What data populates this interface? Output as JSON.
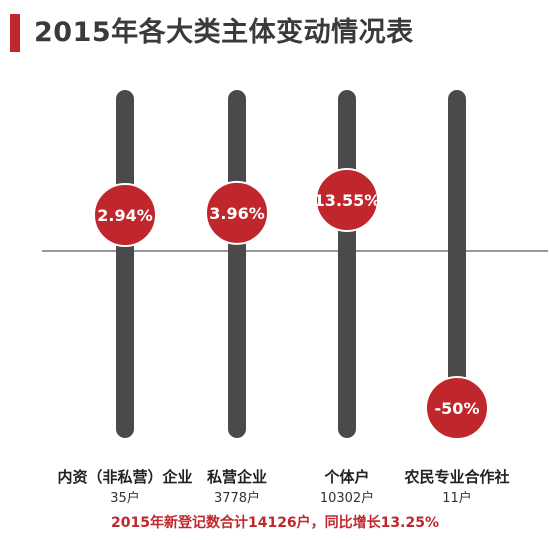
{
  "title": "2015年各大类主体变动情况表",
  "footnote": "2015年新登记数合计14126户，同比增长13.25%",
  "colors": {
    "accent": "#c0272d",
    "bar": "#4a4a4a",
    "title_text": "#3a3a3a"
  },
  "chart_data": {
    "type": "scatter",
    "title": "2015年各大类主体变动情况表",
    "categories": [
      "内资（非私营）企业",
      "私营企业",
      "个体户",
      "农民专业合作社"
    ],
    "sublabels": [
      "35户",
      "3778户",
      "10302户",
      "11户"
    ],
    "values": [
      2.94,
      3.96,
      13.55,
      -50
    ],
    "labels": [
      "2.94%",
      "3.96%",
      "13.55%",
      "-50%"
    ],
    "unit": "%",
    "baseline": 0
  }
}
